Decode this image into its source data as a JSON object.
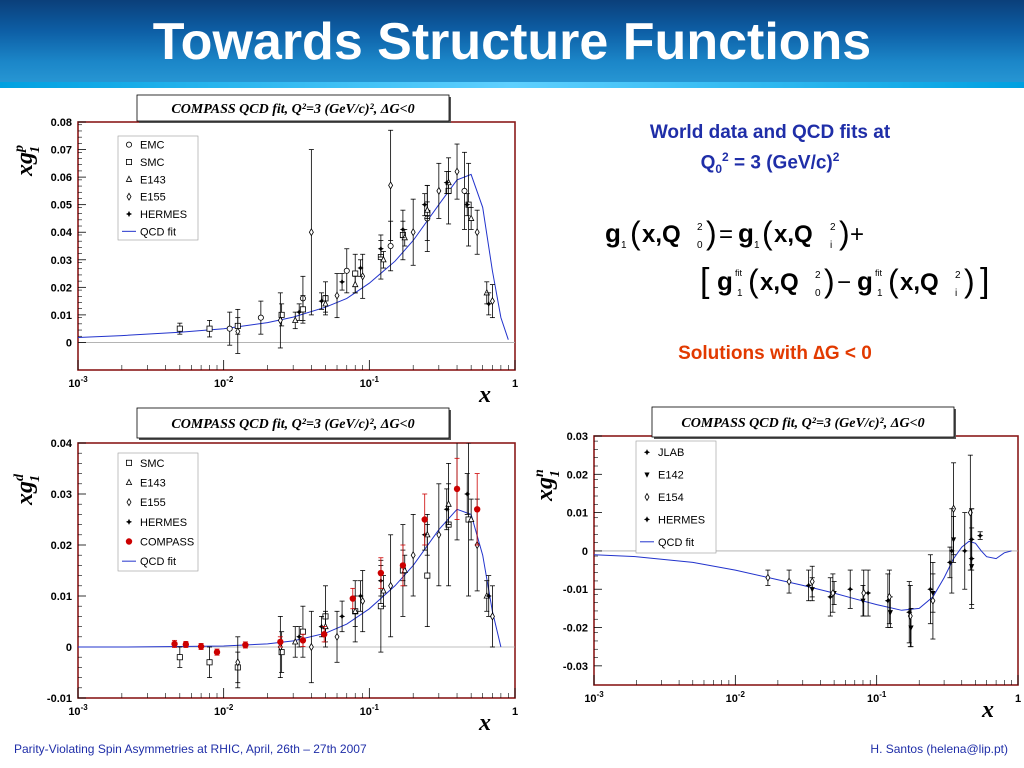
{
  "title": "Towards Structure Functions",
  "caption": {
    "line1": "World data and QCD fits at",
    "line2_main": "Q",
    "line2_sub": "0",
    "line2_sup": "2",
    "line2_rest": " = 3 (GeV/c)",
    "line2_rest_sup": "2"
  },
  "solutions": "Solutions with ∆G < 0",
  "formula": {
    "g": "g",
    "one": "1",
    "xq": "x,Q",
    "two": "2",
    "zero": "0",
    "i": "i",
    "fit": "fit",
    "eq": "=",
    "plus": "+",
    "minus": "−"
  },
  "footer": {
    "left": "Parity-Violating Spin Asymmetries at RHIC,  April, 26th – 27th  2007",
    "right": "H. Santos  (helena@lip.pt)"
  },
  "chart_data": [
    {
      "type": "scatter",
      "title": "COMPASS QCD fit, Q²=3 (GeV/c)², ΔG<0",
      "ylabel": "xg1p",
      "xlabel": "x",
      "xscale": "log",
      "xlim": [
        0.001,
        1
      ],
      "ylim": [
        -0.01,
        0.08
      ],
      "yticks": [
        "0",
        "0.01",
        "0.02",
        "0.03",
        "0.04",
        "0.05",
        "0.06",
        "0.07",
        "0.08"
      ],
      "xticks": [
        "10-3",
        "10-2",
        "10-1",
        "1"
      ],
      "legend_position": "top-left",
      "legend": [
        "EMC",
        "SMC",
        "E143",
        "E155",
        "HERMES",
        "QCD fit"
      ],
      "series": [
        {
          "name": "EMC",
          "marker": "circle",
          "x": [
            0.011,
            0.018,
            0.035,
            0.07,
            0.14,
            0.25,
            0.45
          ],
          "y": [
            0.005,
            0.009,
            0.016,
            0.026,
            0.035,
            0.045,
            0.055
          ],
          "err": [
            0.006,
            0.006,
            0.008,
            0.008,
            0.009,
            0.012,
            0.014
          ]
        },
        {
          "name": "SMC",
          "marker": "square",
          "x": [
            0.005,
            0.008,
            0.0125,
            0.025,
            0.035,
            0.05,
            0.08,
            0.12,
            0.17,
            0.25,
            0.35,
            0.48
          ],
          "y": [
            0.005,
            0.005,
            0.006,
            0.01,
            0.012,
            0.016,
            0.025,
            0.031,
            0.039,
            0.047,
            0.055,
            0.05
          ],
          "err": [
            0.002,
            0.003,
            0.003,
            0.004,
            0.005,
            0.006,
            0.007,
            0.008,
            0.009,
            0.01,
            0.012,
            0.015
          ]
        },
        {
          "name": "E143",
          "marker": "triangle",
          "x": [
            0.031,
            0.05,
            0.08,
            0.125,
            0.175,
            0.25,
            0.35,
            0.5,
            0.64
          ],
          "y": [
            0.008,
            0.014,
            0.021,
            0.03,
            0.038,
            0.048,
            0.058,
            0.045,
            0.018
          ],
          "err": [
            0.003,
            0.003,
            0.003,
            0.003,
            0.003,
            0.003,
            0.004,
            0.004,
            0.004
          ]
        },
        {
          "name": "E155",
          "marker": "diamond",
          "x": [
            0.0125,
            0.0245,
            0.04,
            0.06,
            0.09,
            0.14,
            0.2,
            0.3,
            0.4,
            0.55,
            0.7
          ],
          "y": [
            0.004,
            0.008,
            0.04,
            0.017,
            0.024,
            0.057,
            0.04,
            0.055,
            0.062,
            0.04,
            0.015
          ],
          "err": [
            0.008,
            0.01,
            0.03,
            0.008,
            0.008,
            0.02,
            0.012,
            0.01,
            0.01,
            0.008,
            0.006
          ]
        },
        {
          "name": "HERMES",
          "marker": "star",
          "x": [
            0.033,
            0.047,
            0.065,
            0.087,
            0.12,
            0.17,
            0.24,
            0.34,
            0.47,
            0.66
          ],
          "y": [
            0.011,
            0.015,
            0.022,
            0.027,
            0.034,
            0.041,
            0.05,
            0.058,
            0.05,
            0.014
          ],
          "err": [
            0.003,
            0.003,
            0.003,
            0.003,
            0.003,
            0.003,
            0.004,
            0.004,
            0.004,
            0.004
          ]
        }
      ],
      "fit": {
        "name": "QCD fit",
        "x": [
          0.001,
          0.002,
          0.005,
          0.01,
          0.02,
          0.03,
          0.05,
          0.07,
          0.1,
          0.15,
          0.2,
          0.3,
          0.4,
          0.5,
          0.6,
          0.7,
          0.8,
          0.9
        ],
        "y": [
          0.0018,
          0.0025,
          0.0037,
          0.005,
          0.0072,
          0.0092,
          0.0128,
          0.016,
          0.0215,
          0.0295,
          0.037,
          0.05,
          0.059,
          0.061,
          0.049,
          0.026,
          0.009,
          0.001
        ]
      }
    },
    {
      "type": "scatter",
      "title": "COMPASS QCD fit, Q²=3 (GeV/c)², ΔG<0",
      "ylabel": "xg1d",
      "xlabel": "x",
      "xscale": "log",
      "xlim": [
        0.001,
        1
      ],
      "ylim": [
        -0.01,
        0.04
      ],
      "yticks": [
        "-0.01",
        "0",
        "0.01",
        "0.02",
        "0.03",
        "0.04"
      ],
      "xticks": [
        "10-3",
        "10-2",
        "10-1",
        "1"
      ],
      "legend_position": "top-left",
      "legend": [
        "SMC",
        "E143",
        "E155",
        "HERMES",
        "COMPASS",
        "QCD fit"
      ],
      "series": [
        {
          "name": "SMC",
          "marker": "square",
          "x": [
            0.005,
            0.008,
            0.0125,
            0.025,
            0.035,
            0.05,
            0.08,
            0.12,
            0.17,
            0.25,
            0.35,
            0.48
          ],
          "y": [
            -0.002,
            -0.003,
            -0.004,
            -0.001,
            0.003,
            0.006,
            0.007,
            0.008,
            0.015,
            0.014,
            0.024,
            0.025
          ],
          "err": [
            0.002,
            0.003,
            0.003,
            0.004,
            0.005,
            0.006,
            0.006,
            0.009,
            0.009,
            0.01,
            0.012,
            0.015
          ]
        },
        {
          "name": "E143",
          "marker": "triangle",
          "x": [
            0.031,
            0.05,
            0.08,
            0.125,
            0.175,
            0.25,
            0.35,
            0.5,
            0.64
          ],
          "y": [
            0.001,
            0.004,
            0.007,
            0.011,
            0.015,
            0.022,
            0.028,
            0.025,
            0.01
          ],
          "err": [
            0.003,
            0.003,
            0.003,
            0.003,
            0.003,
            0.004,
            0.004,
            0.004,
            0.003
          ]
        },
        {
          "name": "E155",
          "marker": "diamond",
          "x": [
            0.0125,
            0.0245,
            0.04,
            0.06,
            0.09,
            0.14,
            0.2,
            0.3,
            0.4,
            0.55,
            0.7
          ],
          "y": [
            -0.003,
            0.0,
            0.0,
            0.002,
            0.009,
            0.012,
            0.018,
            0.022,
            0.031,
            0.02,
            0.006
          ],
          "err": [
            0.005,
            0.006,
            0.007,
            0.005,
            0.006,
            0.01,
            0.008,
            0.01,
            0.01,
            0.009,
            0.006
          ]
        },
        {
          "name": "HERMES",
          "marker": "star",
          "x": [
            0.033,
            0.047,
            0.065,
            0.087,
            0.12,
            0.17,
            0.24,
            0.34,
            0.47,
            0.66
          ],
          "y": [
            0.002,
            0.004,
            0.006,
            0.01,
            0.013,
            0.016,
            0.022,
            0.027,
            0.03,
            0.01
          ],
          "err": [
            0.002,
            0.002,
            0.003,
            0.003,
            0.003,
            0.003,
            0.003,
            0.004,
            0.004,
            0.004
          ]
        },
        {
          "name": "COMPASS",
          "marker": "filled-circle",
          "x": [
            0.0046,
            0.0055,
            0.007,
            0.009,
            0.0141,
            0.0245,
            0.035,
            0.049,
            0.077,
            0.12,
            0.17,
            0.24,
            0.4,
            0.55
          ],
          "y": [
            0.0006,
            0.0005,
            0.0001,
            -0.001,
            0.0004,
            0.001,
            0.0013,
            0.0025,
            0.0095,
            0.0145,
            0.016,
            0.025,
            0.031,
            0.027
          ],
          "err": [
            0.0007,
            0.0006,
            0.0006,
            0.0006,
            0.0006,
            0.001,
            0.0012,
            0.0015,
            0.002,
            0.003,
            0.004,
            0.005,
            0.006,
            0.007
          ]
        }
      ],
      "fit": {
        "name": "QCD fit",
        "x": [
          0.001,
          0.002,
          0.005,
          0.01,
          0.02,
          0.03,
          0.05,
          0.07,
          0.1,
          0.15,
          0.2,
          0.3,
          0.4,
          0.5,
          0.6,
          0.7,
          0.8
        ],
        "y": [
          0.0,
          0.0,
          0.0001,
          0.0002,
          0.0006,
          0.0012,
          0.0027,
          0.0045,
          0.0075,
          0.012,
          0.016,
          0.023,
          0.027,
          0.026,
          0.018,
          0.007,
          0.0
        ]
      }
    },
    {
      "type": "scatter",
      "title": "COMPASS QCD fit, Q²=3 (GeV/c)², ΔG<0",
      "ylabel": "xg1n",
      "xlabel": "x",
      "xscale": "log",
      "xlim": [
        0.001,
        1
      ],
      "ylim": [
        -0.035,
        0.03
      ],
      "yticks": [
        "-0.03",
        "-0.02",
        "-0.01",
        "0",
        "0.01",
        "0.02",
        "0.03"
      ],
      "xticks": [
        "10-3",
        "10-2",
        "10-1",
        "1"
      ],
      "legend_position": "top-left",
      "legend": [
        "JLAB",
        "E142",
        "E154",
        "HERMES",
        "QCD fit"
      ],
      "series": [
        {
          "name": "JLAB",
          "marker": "star",
          "x": [
            0.33,
            0.42,
            0.47,
            0.54
          ],
          "y": [
            -0.003,
            0.0,
            0.003,
            0.004
          ],
          "err": [
            0.004,
            0.01,
            0.008,
            0.001
          ]
        },
        {
          "name": "E142",
          "marker": "filled-triangle-down",
          "x": [
            0.035,
            0.05,
            0.08,
            0.125,
            0.175,
            0.25,
            0.35,
            0.47
          ],
          "y": [
            -0.01,
            -0.011,
            -0.013,
            -0.016,
            -0.02,
            -0.011,
            0.003,
            -0.004
          ],
          "err": [
            0.003,
            0.003,
            0.004,
            0.004,
            0.005,
            0.005,
            0.006,
            0.01
          ]
        },
        {
          "name": "E154",
          "marker": "diamond",
          "x": [
            0.017,
            0.024,
            0.035,
            0.049,
            0.081,
            0.123,
            0.173,
            0.25,
            0.35,
            0.46
          ],
          "y": [
            -0.007,
            -0.008,
            -0.008,
            -0.011,
            -0.011,
            -0.012,
            -0.017,
            -0.013,
            0.011,
            0.01
          ],
          "err": [
            0.002,
            0.003,
            0.004,
            0.005,
            0.006,
            0.007,
            0.008,
            0.01,
            0.012,
            0.015
          ]
        },
        {
          "name": "HERMES",
          "marker": "star",
          "x": [
            0.033,
            0.047,
            0.065,
            0.087,
            0.12,
            0.17,
            0.24,
            0.34,
            0.47
          ],
          "y": [
            -0.009,
            -0.012,
            -0.01,
            -0.011,
            -0.013,
            -0.016,
            -0.01,
            0.0,
            -0.002
          ],
          "err": [
            0.004,
            0.005,
            0.005,
            0.006,
            0.007,
            0.008,
            0.009,
            0.011,
            0.013
          ]
        }
      ],
      "fit": {
        "name": "QCD fit",
        "x": [
          0.001,
          0.002,
          0.005,
          0.01,
          0.02,
          0.03,
          0.05,
          0.07,
          0.1,
          0.15,
          0.2,
          0.25,
          0.3,
          0.35,
          0.4,
          0.45,
          0.5,
          0.55,
          0.6,
          0.7,
          0.8,
          0.9
        ],
        "y": [
          -0.001,
          -0.0015,
          -0.003,
          -0.005,
          -0.0075,
          -0.009,
          -0.011,
          -0.0125,
          -0.014,
          -0.0155,
          -0.015,
          -0.012,
          -0.007,
          -0.002,
          0.001,
          0.0025,
          0.002,
          0.0,
          -0.0015,
          -0.002,
          -0.0005,
          0.0
        ]
      }
    }
  ]
}
